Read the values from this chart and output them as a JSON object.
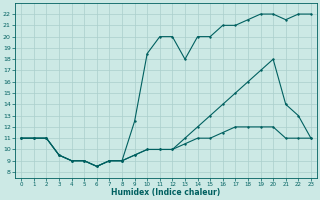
{
  "xlabel": "Humidex (Indice chaleur)",
  "background_color": "#cce9e5",
  "grid_color": "#aacfcc",
  "line_color": "#006060",
  "xlim": [
    -0.5,
    23.5
  ],
  "ylim": [
    7.5,
    23
  ],
  "xticks": [
    0,
    1,
    2,
    3,
    4,
    5,
    6,
    7,
    8,
    9,
    10,
    11,
    12,
    13,
    14,
    15,
    16,
    17,
    18,
    19,
    20,
    21,
    22,
    23
  ],
  "yticks": [
    8,
    9,
    10,
    11,
    12,
    13,
    14,
    15,
    16,
    17,
    18,
    19,
    20,
    21,
    22
  ],
  "line1_x": [
    0,
    1,
    2,
    3,
    4,
    5,
    6,
    7,
    8,
    9,
    10,
    11,
    12,
    13,
    14,
    15,
    16,
    17,
    18,
    19,
    20,
    21,
    22,
    23
  ],
  "line1_y": [
    11,
    11,
    11,
    9.5,
    9,
    9,
    8.5,
    9,
    9,
    9.5,
    10,
    10,
    10,
    10.5,
    11,
    11,
    11.5,
    12,
    12,
    12,
    12,
    11,
    11,
    11
  ],
  "line2_x": [
    0,
    1,
    2,
    3,
    4,
    5,
    6,
    7,
    8,
    9,
    10,
    11,
    12,
    13,
    14,
    15,
    16,
    17,
    18,
    19,
    20,
    21,
    22,
    23
  ],
  "line2_y": [
    11,
    11,
    11,
    9.5,
    9,
    9,
    8.5,
    9,
    9,
    12.5,
    18.5,
    20,
    20,
    18,
    20,
    20,
    21,
    21,
    21.5,
    22,
    22,
    21.5,
    22,
    22
  ],
  "line3_x": [
    0,
    1,
    2,
    3,
    4,
    5,
    6,
    7,
    8,
    9,
    10,
    11,
    12,
    13,
    14,
    15,
    16,
    17,
    18,
    19,
    20,
    21,
    22,
    23
  ],
  "line3_y": [
    11,
    11,
    11,
    9.5,
    9,
    9,
    8.5,
    9,
    9,
    9.5,
    10,
    10,
    10,
    11,
    12,
    13,
    14,
    15,
    16,
    17,
    18,
    14,
    13,
    11
  ]
}
